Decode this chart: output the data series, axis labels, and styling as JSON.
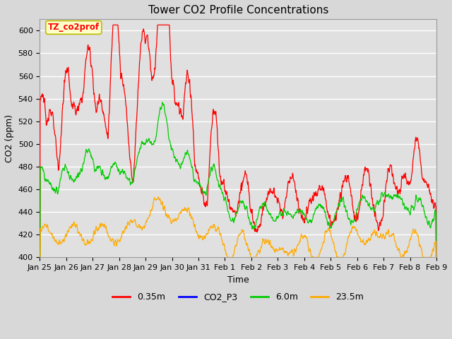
{
  "title": "Tower CO2 Profile Concentrations",
  "xlabel": "Time",
  "ylabel": "CO2 (ppm)",
  "ylim": [
    400,
    610
  ],
  "yticks": [
    400,
    420,
    440,
    460,
    480,
    500,
    520,
    540,
    560,
    580,
    600
  ],
  "background_color": "#d8d8d8",
  "plot_bg_color": "#e0e0e0",
  "grid_color": "#ffffff",
  "annotation_text": "TZ_co2prof",
  "annotation_bg": "#ffffcc",
  "annotation_border": "#bbbb00",
  "colors": {
    "0.35m": "#ff0000",
    "CO2_P3": "#0000ff",
    "6.0m": "#00cc00",
    "23.5m": "#ffaa00"
  },
  "legend_labels": [
    "0.35m",
    "CO2_P3",
    "6.0m",
    "23.5m"
  ],
  "title_fontsize": 11,
  "tick_fontsize": 8,
  "label_fontsize": 9
}
